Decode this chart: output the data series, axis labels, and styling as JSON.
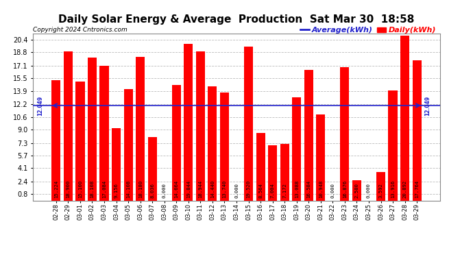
{
  "title": "Daily Solar Energy & Average  Production  Sat Mar 30  18:58",
  "copyright": "Copyright 2024 Cntronics.com",
  "average_label": "Average(kWh)",
  "daily_label": "Daily(kWh)",
  "average_value": 12.049,
  "categories": [
    "02-28",
    "02-29",
    "03-01",
    "03-02",
    "03-03",
    "03-04",
    "03-05",
    "03-06",
    "03-07",
    "03-08",
    "03-09",
    "03-10",
    "03-11",
    "03-12",
    "03-13",
    "03-14",
    "03-15",
    "03-16",
    "03-17",
    "03-18",
    "03-19",
    "03-20",
    "03-21",
    "03-22",
    "03-23",
    "03-24",
    "03-25",
    "03-26",
    "03-27",
    "03-28",
    "03-29"
  ],
  "values": [
    15.224,
    18.9,
    15.1,
    18.108,
    17.084,
    9.156,
    14.108,
    18.18,
    8.036,
    0.0,
    14.664,
    19.844,
    18.944,
    14.44,
    13.74,
    0.0,
    19.52,
    8.564,
    7.004,
    7.172,
    13.088,
    16.584,
    10.948,
    0.0,
    16.876,
    2.58,
    0.0,
    3.592,
    13.916,
    20.892,
    17.764
  ],
  "bar_color": "#ff0000",
  "avg_line_color": "#2222cc",
  "ylim_min": 0.0,
  "ylim_max": 21.2,
  "yticks": [
    0.8,
    2.4,
    4.1,
    5.7,
    7.3,
    9.0,
    10.6,
    12.2,
    13.9,
    15.5,
    17.1,
    18.8,
    20.4
  ],
  "grid_color": "#bbbbbb",
  "bg_color": "#ffffff",
  "title_fontsize": 11,
  "bar_label_fontsize": 5.2,
  "copyright_fontsize": 6.5,
  "legend_fontsize": 8,
  "avg_label_fontsize": 5.5
}
